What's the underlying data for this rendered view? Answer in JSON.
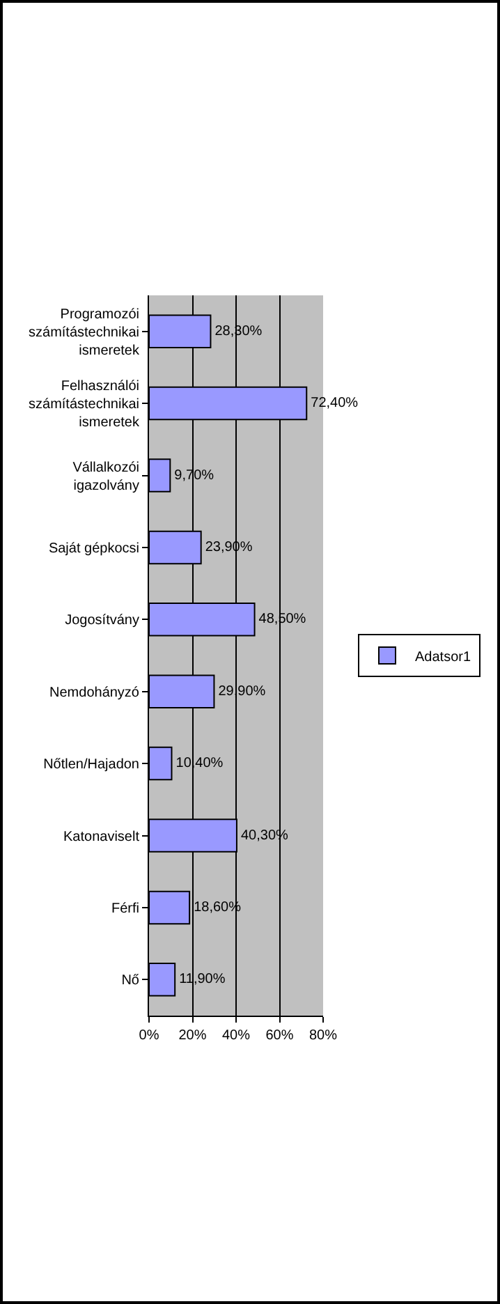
{
  "chart_data": {
    "type": "bar",
    "orientation": "horizontal",
    "categories": [
      "Programozói számítástechnikai ismeretek",
      "Felhasználói számítástechnikai ismeretek",
      "Vállalkozói igazolvány",
      "Saját gépkocsi",
      "Jogosítvány",
      "Nemdohányzó",
      "Nőtlen/Hajadon",
      "Katonaviselt",
      "Férfi",
      "Nő"
    ],
    "series": [
      {
        "name": "Adatsor1",
        "color": "#9999ff",
        "values": [
          28.3,
          72.4,
          9.7,
          23.9,
          48.5,
          29.9,
          10.4,
          40.3,
          18.6,
          11.9
        ],
        "value_labels": [
          "28,30%",
          "72,40%",
          "9,70%",
          "23,90%",
          "48,50%",
          "29,90%",
          "10,40%",
          "40,30%",
          "18,60%",
          "11,90%"
        ]
      }
    ],
    "xlim": [
      0,
      80
    ],
    "xticks": [
      {
        "value": 0,
        "label": "0%"
      },
      {
        "value": 20,
        "label": "20%"
      },
      {
        "value": 40,
        "label": "40%"
      },
      {
        "value": 60,
        "label": "60%"
      },
      {
        "value": 80,
        "label": "80%"
      }
    ],
    "grid": "x",
    "legend": "right"
  }
}
